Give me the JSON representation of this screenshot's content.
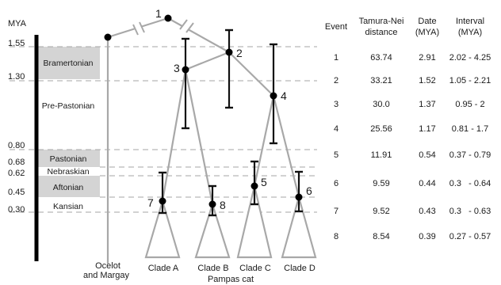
{
  "axis": {
    "label": "MYA",
    "ticks": [
      {
        "text": "1.55",
        "value": 1.55
      },
      {
        "text": "1.30",
        "value": 1.3
      },
      {
        "text": "0.80",
        "value": 0.8
      },
      {
        "text": "0.68",
        "value": 0.68
      },
      {
        "text": "0.62",
        "value": 0.62
      },
      {
        "text": "0.45",
        "value": 0.45
      },
      {
        "text": "0.30",
        "value": 0.3
      }
    ]
  },
  "stages": [
    {
      "name": "Bramertonian",
      "shaded": true
    },
    {
      "name": "Pre-Pastonian",
      "shaded": false
    },
    {
      "name": "Pastonian",
      "shaded": true
    },
    {
      "name": "Nebraskian",
      "shaded": false
    },
    {
      "name": "Aftonian",
      "shaded": true
    },
    {
      "name": "Kansian",
      "shaded": false
    }
  ],
  "tree": {
    "nodes": [
      {
        "label": "1"
      },
      {
        "label": "2"
      },
      {
        "label": "3"
      },
      {
        "label": "4"
      },
      {
        "label": "5"
      },
      {
        "label": "6"
      },
      {
        "label": "7"
      },
      {
        "label": "8"
      }
    ],
    "leaves": [
      {
        "line1": "Ocelot",
        "line2": "and Margay"
      },
      {
        "line1": "Clade A"
      },
      {
        "line1": "Clade B"
      },
      {
        "line1": "Clade C"
      },
      {
        "line1": "Clade D"
      }
    ],
    "group_label": "Pampas cat"
  },
  "table": {
    "headers": [
      {
        "line1": "Event",
        "line2": ""
      },
      {
        "line1": "Tamura-Nei",
        "line2": "distance"
      },
      {
        "line1": "Date",
        "line2": "(MYA)"
      },
      {
        "line1": "Interval",
        "line2": "(MYA)"
      }
    ],
    "rows": [
      {
        "event": "1",
        "distance": "63.74",
        "date": "2.91",
        "interval": "2.02 - 4.25"
      },
      {
        "event": "2",
        "distance": "33.21",
        "date": "1.52",
        "interval": "1.05 - 2.21"
      },
      {
        "event": "3",
        "distance": "30.0",
        "date": "1.37",
        "interval": "0.95 - 2"
      },
      {
        "event": "4",
        "distance": "25.56",
        "date": "1.17",
        "interval": "0.81 - 1.7"
      },
      {
        "event": "5",
        "distance": "11.91",
        "date": "0.54",
        "interval": "0.37 - 0.79"
      },
      {
        "event": "6",
        "distance": "9.59",
        "date": "0.44",
        "interval": "0.3   - 0.64"
      },
      {
        "event": "7",
        "distance": "9.52",
        "date": "0.43",
        "interval": "0.3   - 0.63"
      },
      {
        "event": "8",
        "distance": "8.54",
        "date": "0.39",
        "interval": "0.27 - 0.57"
      }
    ]
  }
}
